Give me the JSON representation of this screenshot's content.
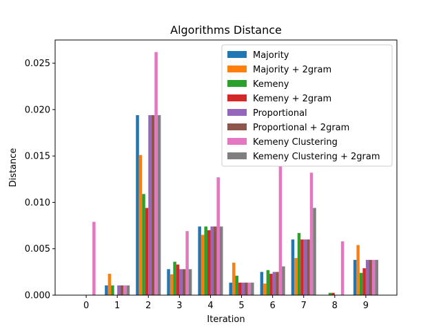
{
  "chart_data": {
    "type": "bar",
    "title": "Algorithms Distance",
    "xlabel": "Iteration",
    "ylabel": "Distance",
    "categories": [
      "0",
      "1",
      "2",
      "3",
      "4",
      "5",
      "6",
      "7",
      "8",
      "9"
    ],
    "ylim": [
      0,
      0.0275
    ],
    "yticks": [
      "0.000",
      "0.005",
      "0.010",
      "0.015",
      "0.020",
      "0.025"
    ],
    "ytick_values": [
      0,
      0.005,
      0.01,
      0.015,
      0.02,
      0.025
    ],
    "legend_position": "top-right",
    "series": [
      {
        "name": "Majority",
        "color": "#1f77b4",
        "values": [
          0,
          0.00105,
          0.0194,
          0.0028,
          0.0074,
          0.00135,
          0.0025,
          0.006,
          0,
          0.0038
        ]
      },
      {
        "name": "Majority + 2gram",
        "color": "#ff7f0e",
        "values": [
          0,
          0.0023,
          0.0151,
          0.00225,
          0.0065,
          0.0035,
          0.00125,
          0.004,
          0,
          0.0054
        ]
      },
      {
        "name": "Kemeny",
        "color": "#2ca02c",
        "values": [
          0,
          0.00105,
          0.0109,
          0.0036,
          0.0074,
          0.0021,
          0.0027,
          0.0067,
          0.00025,
          0.0024
        ]
      },
      {
        "name": "Kemeny + 2gram",
        "color": "#d62728",
        "values": [
          0,
          0,
          0.0094,
          0.0033,
          0.007,
          0.00135,
          0.0023,
          0.006,
          0.00025,
          0.0029
        ]
      },
      {
        "name": "Proportional",
        "color": "#9467bd",
        "values": [
          0,
          0.00105,
          0.0194,
          0.0028,
          0.0074,
          0.00135,
          0.0025,
          0.006,
          0,
          0.0038
        ]
      },
      {
        "name": "Proportional + 2gram",
        "color": "#8c564b",
        "values": [
          0,
          0.00105,
          0.0194,
          0.0028,
          0.0074,
          0.00135,
          0.0025,
          0.006,
          0,
          0.0038
        ]
      },
      {
        "name": "Kemeny Clustering",
        "color": "#e377c2",
        "values": [
          0.0079,
          0.00105,
          0.0262,
          0.0069,
          0.0127,
          0.00135,
          0.0139,
          0.0132,
          0.0058,
          0.0038
        ]
      },
      {
        "name": "Kemeny Clustering + 2gram",
        "color": "#7f7f7f",
        "values": [
          0,
          0.00105,
          0.0194,
          0.0028,
          0.0074,
          0.00135,
          0.0031,
          0.0094,
          0,
          0.0038
        ]
      }
    ]
  }
}
